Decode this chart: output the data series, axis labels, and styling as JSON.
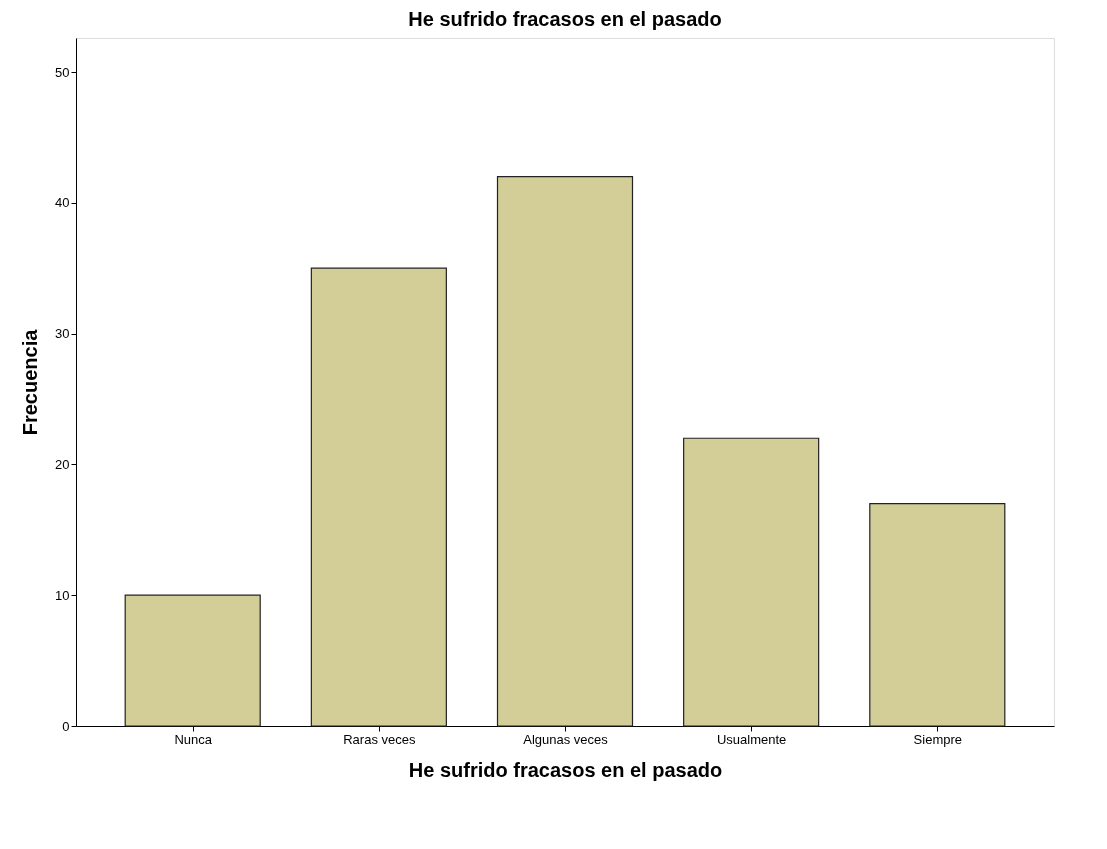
{
  "chart_data": {
    "type": "bar",
    "title": "He sufrido fracasos en el pasado",
    "xlabel": "He sufrido fracasos en el pasado",
    "ylabel": "Frecuencia",
    "categories": [
      "Nunca",
      "Raras veces",
      "Algunas veces",
      "Usualmente",
      "Siempre"
    ],
    "values": [
      10,
      35,
      42,
      22,
      17
    ],
    "color": "#d3ce97",
    "ylim": [
      0,
      52.6
    ],
    "yticks": [
      0,
      10,
      20,
      30,
      40,
      50
    ],
    "grid": false
  }
}
